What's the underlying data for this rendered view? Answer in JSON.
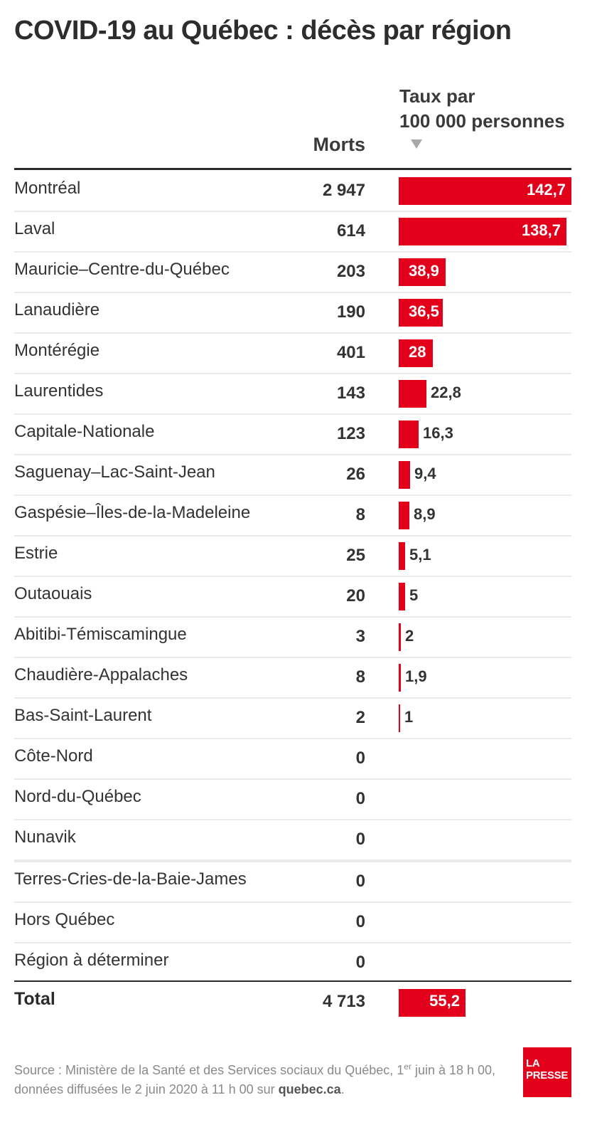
{
  "title": "COVID-19 au Québec : décès par région",
  "headers": {
    "deaths": "Morts",
    "rate_line1": "Taux par",
    "rate_line2": "100 000 personnes"
  },
  "chart_data": {
    "type": "bar",
    "title": "COVID-19 au Québec : décès par région",
    "columns": [
      "Morts",
      "Taux par 100 000 personnes"
    ],
    "categories": [
      "Montréal",
      "Laval",
      "Mauricie–Centre-du-Québec",
      "Lanaudière",
      "Montérégie",
      "Laurentides",
      "Capitale-Nationale",
      "Saguenay–Lac-Saint-Jean",
      "Gaspésie–Îles-de-la-Madeleine",
      "Estrie",
      "Outaouais",
      "Abitibi-Témiscamingue",
      "Chaudière-Appalaches",
      "Bas-Saint-Laurent",
      "Côte-Nord",
      "Nord-du-Québec",
      "Nunavik",
      "Terres-Cries-de-la-Baie-James",
      "Hors Québec",
      "Région à déterminer"
    ],
    "deaths": [
      "2 947",
      "614",
      "203",
      "190",
      "401",
      "143",
      "123",
      "26",
      "8",
      "25",
      "20",
      "3",
      "8",
      "2",
      "0",
      "0",
      "0",
      "0",
      "0",
      "0"
    ],
    "rates": [
      142.7,
      138.7,
      38.9,
      36.5,
      28,
      22.8,
      16.3,
      9.4,
      8.9,
      5.1,
      5,
      2,
      1.9,
      1,
      null,
      null,
      null,
      null,
      null,
      null
    ],
    "rate_labels": [
      "142,7",
      "138,7",
      "38,9",
      "36,5",
      "28",
      "22,8",
      "16,3",
      "9,4",
      "8,9",
      "5,1",
      "5",
      "2",
      "1,9",
      "1",
      "",
      "",
      "",
      "",
      "",
      ""
    ],
    "xlim": [
      0,
      142.7
    ],
    "total": {
      "label": "Total",
      "deaths": "4 713",
      "rate": 55.2,
      "rate_label": "55,2"
    }
  },
  "source": {
    "prefix": "Source : Ministère de la Santé et des Services sociaux du Québec, 1",
    "sup": "er",
    "middle": " juin à 18 h 00, données diffusées le 2 juin 2020 à 11 h 00 sur ",
    "link": "quebec.ca",
    "suffix": "."
  },
  "logo": {
    "line1": "LA",
    "line2": "PRESSE"
  },
  "colors": {
    "bar": "#e2001a",
    "text": "#2b2b2b",
    "rule": "#ebebeb"
  }
}
